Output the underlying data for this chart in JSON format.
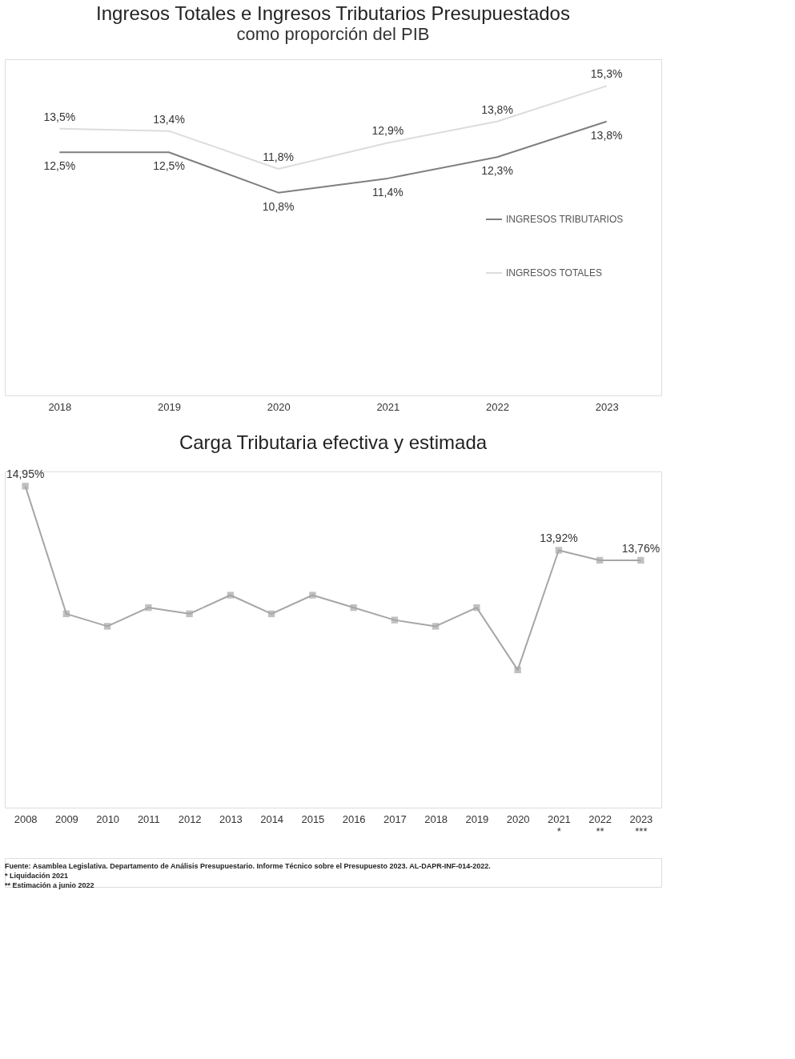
{
  "chart_data": [
    {
      "type": "line",
      "title": "Ingresos Totales e Ingresos Tributarios Presupuestados",
      "subtitle": "como proporción del PIB",
      "categories": [
        "2018",
        "2019",
        "2020",
        "2021",
        "2022",
        "2023"
      ],
      "series": [
        {
          "name": "INGRESOS TRIBUTARIOS",
          "color": "#7f7f7f",
          "values": [
            12.5,
            12.5,
            10.8,
            11.4,
            12.3,
            13.8
          ],
          "value_labels": [
            "12,5%",
            "12,5%",
            "10,8%",
            "11,4%",
            "12,3%",
            "13,8%"
          ]
        },
        {
          "name": "INGRESOS TOTALES",
          "color": "#dcdcdc",
          "values": [
            13.5,
            13.4,
            11.8,
            12.9,
            13.8,
            15.3
          ],
          "value_labels": [
            "13,5%",
            "13,4%",
            "11,8%",
            "12,9%",
            "13,8%",
            "15,3%"
          ]
        }
      ],
      "legend": "bottom right",
      "grid": false,
      "tick_labels": "x",
      "marker": "none",
      "line_style": "solid"
    },
    {
      "type": "line",
      "title": "Carga Tributaria efectiva y estimada",
      "categories": [
        "2008",
        "2009",
        "2010",
        "2011",
        "2012",
        "2013",
        "2014",
        "2015",
        "2016",
        "2017",
        "2018",
        "2019",
        "2020",
        "2021\n*",
        "2022\n**",
        "2023\n***"
      ],
      "series": [
        {
          "color": "#a6a6a6",
          "values": [
            14.95,
            12.9,
            12.7,
            13.0,
            12.9,
            13.2,
            12.9,
            13.2,
            13.0,
            12.8,
            12.7,
            13.0,
            12.0,
            13.92,
            13.76,
            13.76
          ],
          "value_labels": [
            "14,95%",
            null,
            null,
            null,
            null,
            null,
            null,
            null,
            null,
            null,
            null,
            null,
            null,
            "13,92%",
            null,
            "13,76%"
          ]
        }
      ],
      "legend": false,
      "grid": false,
      "tick_labels": "x",
      "marker": "square",
      "line_style": "solid",
      "annotations": [
        "Fuente: Asamblea Legislativa. Departamento de Análisis Presupuestario. Informe Técnico sobre el Presupuesto 2023. AL-DAPR-INF-014-2022.",
        "* Liquidación 2021",
        "** Estimación a junio 2022"
      ]
    }
  ]
}
